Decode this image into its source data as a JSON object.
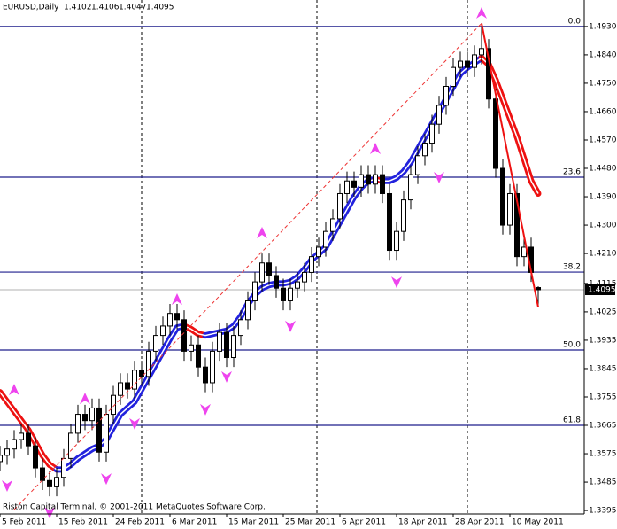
{
  "chart_data": {
    "type": "candlestick",
    "symbol": "EURUSD,Daily",
    "footer": "Riston Capital Terminal, © 2001-2011 MetaQuotes Software Corp.",
    "categories": [
      "5 Feb 2011",
      null,
      null,
      null,
      null,
      null,
      null,
      null,
      "15 Feb 2011",
      null,
      null,
      null,
      null,
      null,
      null,
      null,
      "24 Feb 2011",
      null,
      null,
      null,
      null,
      null,
      null,
      null,
      "6 Mar 2011",
      null,
      null,
      null,
      null,
      null,
      null,
      null,
      "15 Mar 2011",
      null,
      null,
      null,
      null,
      null,
      null,
      null,
      "25 Mar 2011",
      null,
      null,
      null,
      null,
      null,
      null,
      null,
      "6 Apr 2011",
      null,
      null,
      null,
      null,
      null,
      null,
      null,
      "18 Apr 2011",
      null,
      null,
      null,
      null,
      null,
      null,
      null,
      "28 Apr 2011",
      null,
      null,
      null,
      null,
      null,
      null,
      null,
      "10 May 2011",
      null,
      null,
      null,
      null
    ],
    "open": [
      1.355,
      1.357,
      1.359,
      1.362,
      1.364,
      1.36,
      1.353,
      1.349,
      1.347,
      1.35,
      1.356,
      1.364,
      1.37,
      1.368,
      1.372,
      1.358,
      1.37,
      1.376,
      1.38,
      1.378,
      1.384,
      1.382,
      1.39,
      1.395,
      1.398,
      1.402,
      1.4,
      1.39,
      1.392,
      1.385,
      1.38,
      1.39,
      1.396,
      1.388,
      1.395,
      1.4,
      1.406,
      1.412,
      1.418,
      1.414,
      1.41,
      1.406,
      1.41,
      1.412,
      1.415,
      1.42,
      1.423,
      1.428,
      1.432,
      1.44,
      1.444,
      1.442,
      1.446,
      1.443,
      1.446,
      1.44,
      1.422,
      1.428,
      1.438,
      1.446,
      1.452,
      1.456,
      1.462,
      1.468,
      1.474,
      1.48,
      1.482,
      1.48,
      1.484,
      1.486,
      1.47,
      1.448,
      1.43,
      1.44,
      1.42,
      1.423,
      1.4102
    ],
    "high": [
      1.36,
      1.362,
      1.365,
      1.367,
      1.367,
      1.363,
      1.356,
      1.352,
      1.353,
      1.359,
      1.367,
      1.373,
      1.373,
      1.375,
      1.375,
      1.373,
      1.379,
      1.383,
      1.383,
      1.387,
      1.387,
      1.393,
      1.398,
      1.401,
      1.405,
      1.405,
      1.403,
      1.395,
      1.395,
      1.388,
      1.393,
      1.399,
      1.399,
      1.398,
      1.403,
      1.409,
      1.415,
      1.421,
      1.421,
      1.417,
      1.413,
      1.413,
      1.415,
      1.418,
      1.423,
      1.426,
      1.431,
      1.435,
      1.443,
      1.447,
      1.447,
      1.449,
      1.449,
      1.449,
      1.449,
      1.443,
      1.431,
      1.441,
      1.449,
      1.455,
      1.459,
      1.465,
      1.471,
      1.477,
      1.483,
      1.485,
      1.485,
      1.487,
      1.494,
      1.489,
      1.473,
      1.451,
      1.443,
      1.443,
      1.426,
      1.426,
      1.4106
    ],
    "low": [
      1.352,
      1.354,
      1.356,
      1.359,
      1.357,
      1.35,
      1.346,
      1.344,
      1.344,
      1.347,
      1.353,
      1.361,
      1.365,
      1.365,
      1.355,
      1.355,
      1.367,
      1.373,
      1.375,
      1.375,
      1.379,
      1.379,
      1.387,
      1.392,
      1.395,
      1.397,
      1.387,
      1.387,
      1.382,
      1.377,
      1.377,
      1.387,
      1.385,
      1.385,
      1.392,
      1.397,
      1.403,
      1.409,
      1.411,
      1.407,
      1.403,
      1.403,
      1.407,
      1.409,
      1.412,
      1.417,
      1.42,
      1.425,
      1.429,
      1.437,
      1.439,
      1.439,
      1.44,
      1.44,
      1.437,
      1.419,
      1.419,
      1.425,
      1.435,
      1.443,
      1.449,
      1.453,
      1.459,
      1.465,
      1.471,
      1.477,
      1.477,
      1.477,
      1.481,
      1.467,
      1.445,
      1.427,
      1.427,
      1.417,
      1.417,
      1.412,
      1.4047
    ],
    "close": [
      1.357,
      1.359,
      1.362,
      1.364,
      1.36,
      1.353,
      1.349,
      1.347,
      1.35,
      1.356,
      1.364,
      1.37,
      1.368,
      1.372,
      1.358,
      1.37,
      1.376,
      1.38,
      1.378,
      1.384,
      1.382,
      1.39,
      1.395,
      1.398,
      1.402,
      1.4,
      1.39,
      1.392,
      1.385,
      1.38,
      1.39,
      1.396,
      1.388,
      1.395,
      1.4,
      1.406,
      1.412,
      1.418,
      1.414,
      1.41,
      1.406,
      1.41,
      1.412,
      1.415,
      1.42,
      1.423,
      1.428,
      1.432,
      1.44,
      1.444,
      1.442,
      1.446,
      1.443,
      1.446,
      1.44,
      1.422,
      1.428,
      1.438,
      1.446,
      1.452,
      1.456,
      1.462,
      1.468,
      1.474,
      1.48,
      1.482,
      1.48,
      1.484,
      1.486,
      1.47,
      1.448,
      1.43,
      1.44,
      1.42,
      1.423,
      1.415,
      1.4095
    ],
    "up_color": "#ffffff",
    "down_color": "#000000",
    "ma": {
      "up_color": "#2222dd",
      "down_color": "#ee1111",
      "values": [
        1.377,
        1.374,
        1.371,
        1.368,
        1.365,
        1.361,
        1.357,
        1.354,
        1.3525,
        1.3525,
        1.354,
        1.356,
        1.3575,
        1.359,
        1.36,
        1.362,
        1.366,
        1.37,
        1.372,
        1.374,
        1.378,
        1.382,
        1.386,
        1.39,
        1.394,
        1.3975,
        1.398,
        1.397,
        1.3955,
        1.395,
        1.3955,
        1.396,
        1.3965,
        1.398,
        1.401,
        1.405,
        1.408,
        1.41,
        1.411,
        1.4115,
        1.4115,
        1.412,
        1.4135,
        1.416,
        1.419,
        1.421,
        1.423,
        1.427,
        1.431,
        1.435,
        1.439,
        1.442,
        1.444,
        1.4445,
        1.444,
        1.444,
        1.445,
        1.447,
        1.45,
        1.454,
        1.458,
        1.462,
        1.466,
        1.47,
        1.474,
        1.478,
        1.48,
        1.4815,
        1.483,
        1.481,
        1.476,
        1.47,
        1.464,
        1.458,
        1.451,
        1.444,
        1.44
      ]
    },
    "fractal_up": {
      "color": "#ee44ee",
      "x": [
        2,
        12,
        25,
        37,
        53,
        68
      ],
      "values": [
        1.3777,
        1.3749,
        1.4064,
        1.4275,
        1.4542,
        1.4972
      ]
    },
    "fractal_down": {
      "color": "#ee44ee",
      "x": [
        1,
        7,
        15,
        19,
        29,
        32,
        41,
        56,
        62
      ],
      "values": [
        1.3474,
        1.3389,
        1.3496,
        1.3671,
        1.3716,
        1.382,
        1.398,
        1.412,
        1.4452
      ]
    },
    "trendlines": [
      {
        "color": "#ee3333",
        "dashed": true,
        "x": [
          2,
          68
        ],
        "values": [
          1.3398,
          1.494
        ]
      },
      {
        "color": "#ee1111",
        "dashed": false,
        "x": [
          68,
          76
        ],
        "values": [
          1.494,
          1.404
        ]
      }
    ],
    "fib_levels": [
      {
        "value": 1.493,
        "label": "0.0"
      },
      {
        "value": 1.4452,
        "label": "23.6"
      },
      {
        "value": 1.4151,
        "label": "38.2"
      },
      {
        "value": 1.3904,
        "label": "50.0"
      },
      {
        "value": 1.3665,
        "label": "61.8"
      }
    ],
    "ylim": [
      1.3384,
      1.5014
    ],
    "yticks": [
      {
        "value": 1.493,
        "label": "1.4930"
      },
      {
        "value": 1.484,
        "label": "1.4840"
      },
      {
        "value": 1.475,
        "label": "1.4750"
      },
      {
        "value": 1.466,
        "label": "1.4660"
      },
      {
        "value": 1.457,
        "label": "1.4570"
      },
      {
        "value": 1.448,
        "label": "1.4480"
      },
      {
        "value": 1.439,
        "label": "1.4390"
      },
      {
        "value": 1.43,
        "label": "1.4300"
      },
      {
        "value": 1.421,
        "label": "1.4210"
      },
      {
        "value": 1.4115,
        "label": "1.4115"
      },
      {
        "value": 1.4025,
        "label": "1.4025"
      },
      {
        "value": 1.3935,
        "label": "1.3935"
      },
      {
        "value": 1.3845,
        "label": "1.3845"
      },
      {
        "value": 1.3755,
        "label": "1.3755"
      },
      {
        "value": 1.3665,
        "label": "1.3665"
      },
      {
        "value": 1.3575,
        "label": "1.3575"
      },
      {
        "value": 1.3485,
        "label": "1.3485"
      },
      1.3395
    ]
  }
}
